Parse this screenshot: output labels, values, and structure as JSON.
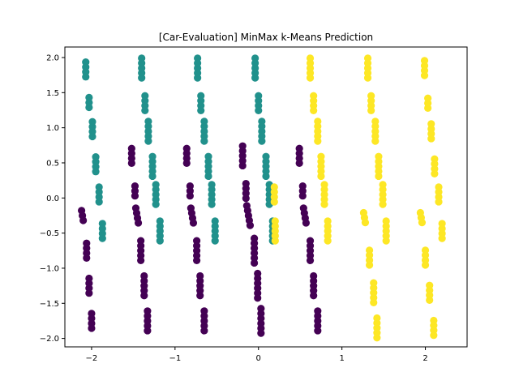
{
  "chart_data": {
    "type": "scatter",
    "title": "[Car-Evaluation] MinMax k-Means Prediction",
    "xlabel": "",
    "ylabel": "",
    "xlim": [
      -2.32,
      2.5
    ],
    "ylim": [
      -2.12,
      2.15
    ],
    "xticks": [
      -2,
      -1,
      0,
      1,
      2
    ],
    "xtick_labels": [
      "−2",
      "−1",
      "0",
      "1",
      "2"
    ],
    "yticks": [
      -2.0,
      -1.5,
      -1.0,
      -0.5,
      0.0,
      0.5,
      1.0,
      1.5,
      2.0
    ],
    "ytick_labels": [
      "−2.0",
      "−1.5",
      "−1.0",
      "−0.5",
      "0.0",
      "0.5",
      "1.0",
      "1.5",
      "2.0"
    ],
    "grid": false,
    "legend": "none",
    "cluster_colors": [
      "#440154",
      "#21918c",
      "#fde725"
    ],
    "clusters": [
      {
        "color": "#440154",
        "groups": [
          {
            "x": -2.1,
            "y": -0.25,
            "dx": -0.01,
            "n": 3
          },
          {
            "x": -2.06,
            "y": -0.75,
            "dx": 0.0,
            "n": 4
          },
          {
            "x": -2.03,
            "y": -1.25,
            "dx": 0.0,
            "n": 4
          },
          {
            "x": -2.0,
            "y": -1.75,
            "dx": 0.0,
            "n": 4
          },
          {
            "x": -1.52,
            "y": 0.6,
            "dx": 0.0,
            "n": 4
          },
          {
            "x": -1.48,
            "y": 0.1,
            "dx": 0.0,
            "n": 3
          },
          {
            "x": -1.44,
            "y": -0.25,
            "dx": -0.01,
            "n": 4
          },
          {
            "x": -1.41,
            "y": -0.75,
            "dx": 0.0,
            "n": 5
          },
          {
            "x": -1.37,
            "y": -1.25,
            "dx": 0.0,
            "n": 5
          },
          {
            "x": -1.33,
            "y": -1.75,
            "dx": 0.0,
            "n": 5
          },
          {
            "x": -0.86,
            "y": 0.6,
            "dx": 0.0,
            "n": 4
          },
          {
            "x": -0.82,
            "y": 0.1,
            "dx": 0.0,
            "n": 3
          },
          {
            "x": -0.78,
            "y": -0.25,
            "dx": -0.01,
            "n": 4
          },
          {
            "x": -0.74,
            "y": -0.75,
            "dx": 0.0,
            "n": 5
          },
          {
            "x": -0.7,
            "y": -1.25,
            "dx": 0.0,
            "n": 5
          },
          {
            "x": -0.65,
            "y": -1.75,
            "dx": 0.0,
            "n": 5
          },
          {
            "x": -0.19,
            "y": 0.6,
            "dx": 0.0,
            "n": 5
          },
          {
            "x": -0.15,
            "y": 0.1,
            "dx": 0.0,
            "n": 4
          },
          {
            "x": -0.1,
            "y": -0.25,
            "dx": -0.01,
            "n": 5
          },
          {
            "x": -0.05,
            "y": -0.75,
            "dx": 0.0,
            "n": 6
          },
          {
            "x": -0.01,
            "y": -1.25,
            "dx": 0.0,
            "n": 6
          },
          {
            "x": 0.03,
            "y": -1.75,
            "dx": 0.0,
            "n": 6
          },
          {
            "x": 0.49,
            "y": 0.6,
            "dx": 0.0,
            "n": 4
          },
          {
            "x": 0.53,
            "y": 0.1,
            "dx": 0.0,
            "n": 3
          },
          {
            "x": 0.57,
            "y": -0.25,
            "dx": -0.01,
            "n": 4
          },
          {
            "x": 0.62,
            "y": -0.75,
            "dx": 0.0,
            "n": 5
          },
          {
            "x": 0.66,
            "y": -1.25,
            "dx": 0.0,
            "n": 5
          },
          {
            "x": 0.71,
            "y": -1.75,
            "dx": 0.0,
            "n": 5
          }
        ]
      },
      {
        "color": "#21918c",
        "groups": [
          {
            "x": -2.07,
            "y": 1.83,
            "dx": 0.0,
            "n": 4
          },
          {
            "x": -2.03,
            "y": 1.36,
            "dx": 0.0,
            "n": 3
          },
          {
            "x": -1.99,
            "y": 0.98,
            "dx": 0.0,
            "n": 4
          },
          {
            "x": -1.95,
            "y": 0.48,
            "dx": 0.0,
            "n": 4
          },
          {
            "x": -1.91,
            "y": 0.05,
            "dx": 0.0,
            "n": 4
          },
          {
            "x": -1.87,
            "y": -0.47,
            "dx": 0.0,
            "n": 4
          },
          {
            "x": -1.4,
            "y": 1.85,
            "dx": 0.0,
            "n": 5
          },
          {
            "x": -1.36,
            "y": 1.35,
            "dx": 0.0,
            "n": 4
          },
          {
            "x": -1.32,
            "y": 0.95,
            "dx": 0.0,
            "n": 5
          },
          {
            "x": -1.27,
            "y": 0.45,
            "dx": 0.0,
            "n": 5
          },
          {
            "x": -1.23,
            "y": 0.05,
            "dx": 0.0,
            "n": 5
          },
          {
            "x": -1.18,
            "y": -0.47,
            "dx": 0.0,
            "n": 5
          },
          {
            "x": -0.73,
            "y": 1.85,
            "dx": 0.0,
            "n": 5
          },
          {
            "x": -0.69,
            "y": 1.35,
            "dx": 0.0,
            "n": 4
          },
          {
            "x": -0.65,
            "y": 0.95,
            "dx": 0.0,
            "n": 5
          },
          {
            "x": -0.6,
            "y": 0.45,
            "dx": 0.0,
            "n": 5
          },
          {
            "x": -0.56,
            "y": 0.05,
            "dx": 0.0,
            "n": 5
          },
          {
            "x": -0.52,
            "y": -0.47,
            "dx": 0.0,
            "n": 5
          },
          {
            "x": -0.04,
            "y": 1.85,
            "dx": 0.0,
            "n": 5
          },
          {
            "x": 0.0,
            "y": 1.35,
            "dx": 0.0,
            "n": 4
          },
          {
            "x": 0.04,
            "y": 0.95,
            "dx": 0.0,
            "n": 5
          },
          {
            "x": 0.09,
            "y": 0.45,
            "dx": 0.0,
            "n": 5
          },
          {
            "x": 0.13,
            "y": 0.05,
            "dx": 0.0,
            "n": 5
          },
          {
            "x": 0.17,
            "y": -0.47,
            "dx": 0.0,
            "n": 5
          }
        ]
      },
      {
        "color": "#fde725",
        "groups": [
          {
            "x": 0.19,
            "y": 0.05,
            "dx": 0.0,
            "n": 4
          },
          {
            "x": 0.2,
            "y": -0.47,
            "dx": 0.0,
            "n": 5
          },
          {
            "x": 0.62,
            "y": 1.85,
            "dx": 0.0,
            "n": 5
          },
          {
            "x": 0.66,
            "y": 1.35,
            "dx": 0.0,
            "n": 4
          },
          {
            "x": 0.71,
            "y": 0.95,
            "dx": 0.0,
            "n": 5
          },
          {
            "x": 0.75,
            "y": 0.45,
            "dx": 0.0,
            "n": 5
          },
          {
            "x": 0.79,
            "y": 0.05,
            "dx": 0.0,
            "n": 5
          },
          {
            "x": 0.83,
            "y": -0.47,
            "dx": 0.0,
            "n": 5
          },
          {
            "x": 1.28,
            "y": -0.28,
            "dx": -0.01,
            "n": 3
          },
          {
            "x": 1.31,
            "y": 1.85,
            "dx": 0.0,
            "n": 5
          },
          {
            "x": 1.33,
            "y": -0.85,
            "dx": 0.0,
            "n": 4
          },
          {
            "x": 1.35,
            "y": 1.35,
            "dx": 0.0,
            "n": 4
          },
          {
            "x": 1.38,
            "y": -1.35,
            "dx": 0.0,
            "n": 5
          },
          {
            "x": 1.4,
            "y": 0.95,
            "dx": 0.0,
            "n": 5
          },
          {
            "x": 1.42,
            "y": -1.85,
            "dx": 0.0,
            "n": 5
          },
          {
            "x": 1.44,
            "y": 0.45,
            "dx": 0.0,
            "n": 5
          },
          {
            "x": 1.49,
            "y": 0.05,
            "dx": 0.0,
            "n": 5
          },
          {
            "x": 1.53,
            "y": -0.47,
            "dx": 0.0,
            "n": 5
          },
          {
            "x": 1.96,
            "y": -0.28,
            "dx": -0.01,
            "n": 3
          },
          {
            "x": 1.99,
            "y": 1.85,
            "dx": 0.0,
            "n": 4
          },
          {
            "x": 2.0,
            "y": -0.85,
            "dx": 0.0,
            "n": 4
          },
          {
            "x": 2.03,
            "y": 1.35,
            "dx": 0.0,
            "n": 3
          },
          {
            "x": 2.05,
            "y": -1.35,
            "dx": 0.0,
            "n": 4
          },
          {
            "x": 2.07,
            "y": 0.95,
            "dx": 0.0,
            "n": 4
          },
          {
            "x": 2.1,
            "y": -1.85,
            "dx": 0.0,
            "n": 4
          },
          {
            "x": 2.11,
            "y": 0.45,
            "dx": 0.0,
            "n": 4
          },
          {
            "x": 2.16,
            "y": 0.05,
            "dx": 0.0,
            "n": 4
          },
          {
            "x": 2.2,
            "y": -0.47,
            "dx": 0.0,
            "n": 4
          }
        ]
      }
    ]
  }
}
